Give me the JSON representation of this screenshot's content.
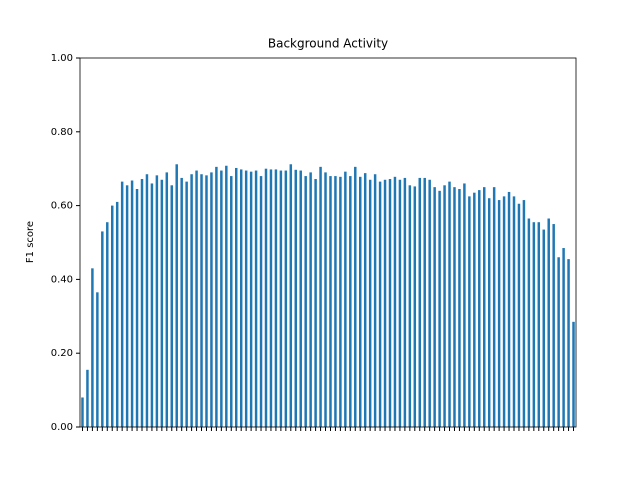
{
  "chart_data": {
    "type": "bar",
    "title": "Background Activity",
    "ylabel": "F1 score",
    "categories": [
      null,
      null,
      null,
      null,
      null,
      null,
      null,
      null,
      null,
      null,
      null,
      null,
      null,
      null,
      null,
      null,
      null,
      null,
      null,
      null,
      null,
      null,
      null,
      null,
      null,
      null,
      null,
      null,
      null,
      null,
      null,
      null,
      null,
      null,
      null,
      null,
      null,
      null,
      null,
      null,
      null,
      null,
      null,
      null,
      null,
      null,
      null,
      null,
      null,
      null,
      null,
      null,
      null,
      null,
      null,
      null,
      null,
      null,
      null,
      null,
      null,
      null,
      null,
      null,
      null,
      null,
      null,
      null,
      null,
      null,
      null,
      null,
      null,
      null,
      null,
      null,
      null,
      null,
      null,
      null,
      null,
      null,
      null,
      null,
      null,
      null,
      null,
      null,
      null,
      null,
      null,
      null,
      null,
      null,
      null,
      null,
      null,
      null,
      null,
      null
    ],
    "values": [
      0.08,
      0.155,
      0.43,
      0.365,
      0.53,
      0.555,
      0.6,
      0.61,
      0.665,
      0.655,
      0.668,
      0.645,
      0.672,
      0.685,
      0.66,
      0.682,
      0.67,
      0.69,
      0.655,
      0.712,
      0.675,
      0.665,
      0.685,
      0.695,
      0.685,
      0.682,
      0.69,
      0.705,
      0.695,
      0.708,
      0.68,
      0.702,
      0.698,
      0.695,
      0.692,
      0.695,
      0.68,
      0.7,
      0.698,
      0.698,
      0.695,
      0.695,
      0.712,
      0.697,
      0.695,
      0.68,
      0.69,
      0.672,
      0.705,
      0.69,
      0.68,
      0.68,
      0.678,
      0.692,
      0.68,
      0.705,
      0.678,
      0.688,
      0.67,
      0.685,
      0.665,
      0.67,
      0.672,
      0.678,
      0.67,
      0.675,
      0.655,
      0.652,
      0.675,
      0.675,
      0.67,
      0.65,
      0.64,
      0.655,
      0.665,
      0.65,
      0.645,
      0.66,
      0.625,
      0.635,
      0.642,
      0.65,
      0.62,
      0.65,
      0.615,
      0.625,
      0.637,
      0.625,
      0.605,
      0.615,
      0.565,
      0.555,
      0.555,
      0.535,
      0.565,
      0.55,
      0.46,
      0.485,
      0.455,
      0.285
    ],
    "color": "#1f77b4",
    "ylim": [
      0,
      1
    ],
    "yticks": [
      {
        "value": 0,
        "label": "0.00"
      },
      {
        "value": 0.2,
        "label": "0.20"
      },
      {
        "value": 0.4,
        "label": "0.40"
      },
      {
        "value": 0.6,
        "label": "0.60"
      },
      {
        "value": 0.8,
        "label": "0.80"
      },
      {
        "value": 1,
        "label": "1.00"
      }
    ]
  }
}
